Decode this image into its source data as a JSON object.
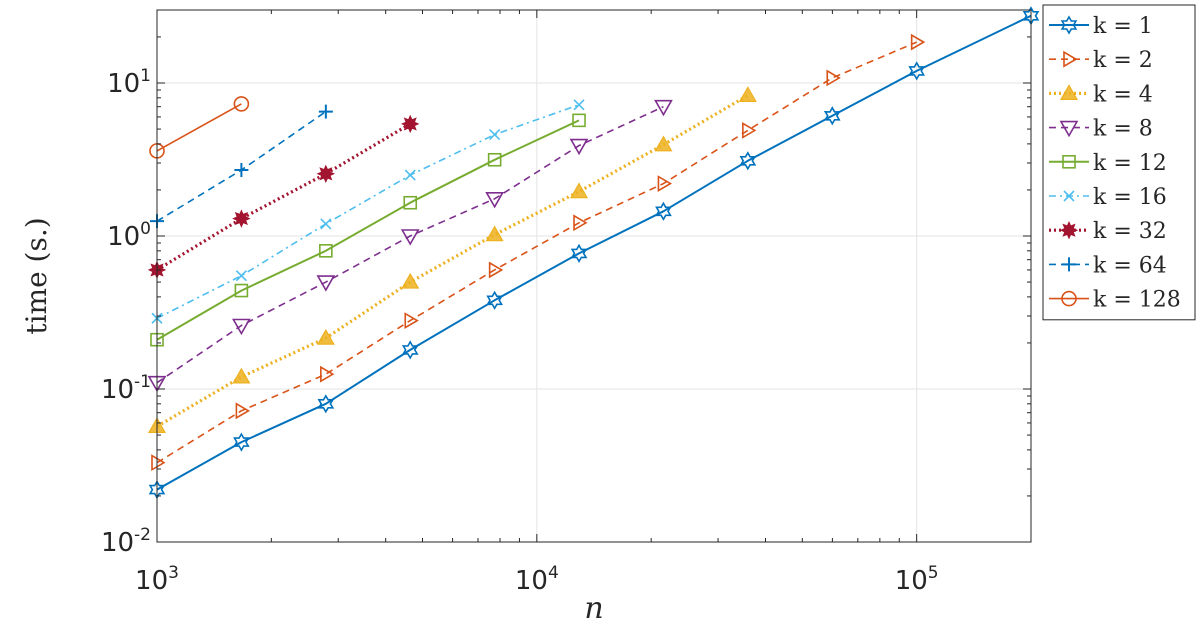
{
  "chart_data": {
    "type": "line",
    "xlabel": "n",
    "ylabel": "time (s.)",
    "xscale": "log",
    "yscale": "log",
    "xlim": [
      1000,
      200000
    ],
    "ylim": [
      0.01,
      30
    ],
    "grid": true,
    "legend_position": "right",
    "xticks": [
      {
        "value": 1000,
        "base": "10",
        "exp": "3"
      },
      {
        "value": 10000,
        "base": "10",
        "exp": "4"
      },
      {
        "value": 100000,
        "base": "10",
        "exp": "5"
      }
    ],
    "yticks": [
      {
        "value": 0.01,
        "base": "10",
        "exp": "-2"
      },
      {
        "value": 0.1,
        "base": "10",
        "exp": "-1"
      },
      {
        "value": 1,
        "base": "10",
        "exp": "0"
      },
      {
        "value": 10,
        "base": "10",
        "exp": "1"
      }
    ],
    "series": [
      {
        "name": "k = 1",
        "color": "#0072BD",
        "dash": "",
        "marker": "hexagram",
        "width": 2,
        "x": [
          1000,
          1668,
          2783,
          4642,
          7743,
          12915,
          21544,
          35938,
          59948,
          100000,
          200000
        ],
        "y": [
          0.022,
          0.045,
          0.08,
          0.18,
          0.38,
          0.77,
          1.45,
          3.1,
          6.1,
          12.0,
          27.5
        ]
      },
      {
        "name": "k = 2",
        "color": "#D95319",
        "dash": "7,5",
        "marker": "triangle-right",
        "width": 1.6,
        "x": [
          1000,
          1668,
          2783,
          4642,
          7743,
          12915,
          21544,
          35938,
          59948,
          100000
        ],
        "y": [
          0.033,
          0.072,
          0.125,
          0.28,
          0.6,
          1.22,
          2.2,
          4.9,
          10.8,
          18.5
        ]
      },
      {
        "name": "k = 4",
        "color": "#EDB120",
        "dash": "2,3",
        "marker": "triangle-up",
        "width": 3.2,
        "x": [
          1000,
          1668,
          2783,
          4642,
          7743,
          12915,
          21544,
          35938
        ],
        "y": [
          0.057,
          0.12,
          0.215,
          0.5,
          1.02,
          1.95,
          3.95,
          8.3
        ]
      },
      {
        "name": "k = 8",
        "color": "#7E2F8E",
        "dash": "7,5",
        "marker": "triangle-down",
        "width": 1.6,
        "x": [
          1000,
          1668,
          2783,
          4642,
          7743,
          12915,
          21544
        ],
        "y": [
          0.11,
          0.26,
          0.5,
          1.0,
          1.75,
          3.9,
          7.0
        ]
      },
      {
        "name": "k = 12",
        "color": "#77AC30",
        "dash": "",
        "marker": "square",
        "width": 2,
        "x": [
          1000,
          1668,
          2783,
          4642,
          7743,
          12915
        ],
        "y": [
          0.21,
          0.44,
          0.8,
          1.65,
          3.15,
          5.7
        ]
      },
      {
        "name": "k = 16",
        "color": "#4DBEEE",
        "dash": "7,4,2,4",
        "marker": "x",
        "width": 1.6,
        "x": [
          1000,
          1668,
          2783,
          4642,
          7743,
          12915
        ],
        "y": [
          0.29,
          0.55,
          1.2,
          2.5,
          4.6,
          7.2
        ]
      },
      {
        "name": "k = 32",
        "color": "#A2142F",
        "dash": "2,3",
        "marker": "asterisk",
        "width": 3.2,
        "x": [
          1000,
          1668,
          2783,
          4642
        ],
        "y": [
          0.6,
          1.3,
          2.55,
          5.4
        ]
      },
      {
        "name": "k = 64",
        "color": "#0072BD",
        "dash": "7,5",
        "marker": "plus",
        "width": 1.6,
        "x": [
          1000,
          1668,
          2783
        ],
        "y": [
          1.25,
          2.7,
          6.5
        ]
      },
      {
        "name": "k = 128",
        "color": "#D95319",
        "dash": "",
        "marker": "circle",
        "width": 1.6,
        "x": [
          1000,
          1668
        ],
        "y": [
          3.6,
          7.3
        ]
      }
    ]
  }
}
